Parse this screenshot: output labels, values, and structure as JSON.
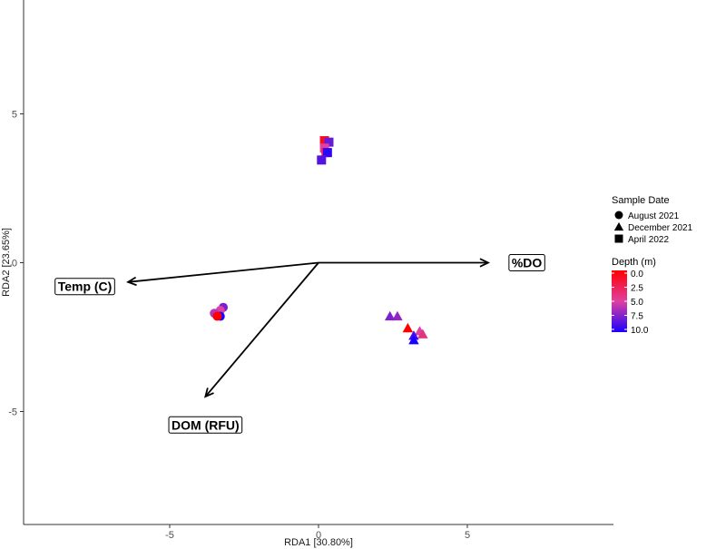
{
  "chart_data": {
    "type": "scatter",
    "title": "",
    "xlabel": "RDA1 [30.80%]",
    "ylabel": "RDA2 [23.65%]",
    "xlim": [
      -10,
      10
    ],
    "ylim": [
      -8.8,
      8.8
    ],
    "xticks": [
      -5,
      0,
      5
    ],
    "yticks": [
      -5,
      0,
      5
    ],
    "grid": false,
    "legend_position": "right",
    "shape_legend": {
      "title": "Sample Date",
      "entries": [
        {
          "label": "August 2021",
          "shape": "circle"
        },
        {
          "label": "December 2021",
          "shape": "triangle"
        },
        {
          "label": "April 2022",
          "shape": "square"
        }
      ]
    },
    "color_legend": {
      "title": "Depth (m)",
      "ticks": [
        "0.0",
        "2.5",
        "5.0",
        "7.5",
        "10.0"
      ],
      "range": [
        0,
        10
      ],
      "colors": {
        "low": "#ff0000",
        "mid": "#e040a0",
        "high": "#1a00ff"
      }
    },
    "series": [
      {
        "name": "August 2021",
        "shape": "circle",
        "points": [
          {
            "x": -3.2,
            "y": -1.5,
            "depth": 7.5
          },
          {
            "x": -3.3,
            "y": -1.6,
            "depth": 5.0
          },
          {
            "x": -3.5,
            "y": -1.7,
            "depth": 6.0
          },
          {
            "x": -3.3,
            "y": -1.8,
            "depth": 10.0
          },
          {
            "x": -3.4,
            "y": -1.8,
            "depth": 0.0
          }
        ]
      },
      {
        "name": "December 2021",
        "shape": "triangle",
        "points": [
          {
            "x": 2.4,
            "y": -1.8,
            "depth": 7.5
          },
          {
            "x": 2.65,
            "y": -1.8,
            "depth": 7.0
          },
          {
            "x": 3.0,
            "y": -2.2,
            "depth": 0.0
          },
          {
            "x": 3.4,
            "y": -2.3,
            "depth": 5.0
          },
          {
            "x": 3.5,
            "y": -2.4,
            "depth": 4.0
          },
          {
            "x": 3.2,
            "y": -2.45,
            "depth": 9.0
          },
          {
            "x": 3.2,
            "y": -2.6,
            "depth": 10.0
          }
        ]
      },
      {
        "name": "April 2022",
        "shape": "square",
        "points": [
          {
            "x": 0.2,
            "y": 4.1,
            "depth": 1.0
          },
          {
            "x": 0.35,
            "y": 4.05,
            "depth": 8.0
          },
          {
            "x": 0.2,
            "y": 3.85,
            "depth": 5.0
          },
          {
            "x": 0.25,
            "y": 3.7,
            "depth": 3.0
          },
          {
            "x": 0.3,
            "y": 3.7,
            "depth": 9.5
          },
          {
            "x": 0.1,
            "y": 3.45,
            "depth": 8.5
          }
        ]
      }
    ],
    "vectors": [
      {
        "label": "Temp (C)",
        "x": -6.4,
        "y": -0.65,
        "label_x": -7.85,
        "label_y": -0.8
      },
      {
        "label": "%DO",
        "x": 5.7,
        "y": 0.0,
        "label_x": 7.0,
        "label_y": 0.0
      },
      {
        "label": "DOM (RFU)",
        "x": -3.8,
        "y": -4.5,
        "label_x": -3.8,
        "label_y": -5.45
      }
    ]
  }
}
